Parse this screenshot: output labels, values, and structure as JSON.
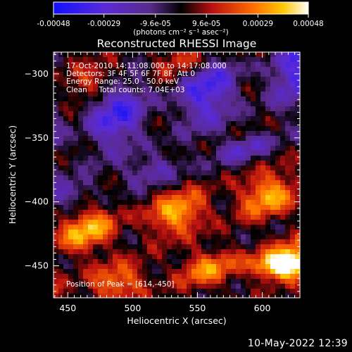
{
  "chart_data": {
    "type": "heatmap",
    "title": "Reconstructed RHESSI Image",
    "xlabel": "Heliocentric X (arcsec)",
    "ylabel": "Heliocentric Y (arcsec)",
    "xlim": [
      439,
      629
    ],
    "ylim": [
      -475,
      -283
    ],
    "x_ticks": [
      450,
      500,
      550,
      600
    ],
    "y_ticks": [
      -300,
      -350,
      -400,
      -450
    ],
    "colorbar": {
      "range": [
        -0.00048,
        0.00048
      ],
      "tick_values": [
        -0.00048,
        -0.00029,
        -9.6e-05,
        9.6e-05,
        0.00029,
        0.00048
      ],
      "tick_labels": [
        "-0.00048",
        "-0.00029",
        "-9.6e-05",
        "9.6e-05",
        "0.00029",
        "0.00048"
      ],
      "unit_label": "(photons cm⁻² s⁻¹ asec⁻²)"
    },
    "annotations": [
      "17-Oct-2010 14:11:08.000 to 14:17:08.000",
      "Detectors: 3F 4F 5F 6F 7F 8F, Att 0",
      "Energy Range: 25.0 - 50.0 keV",
      "Clean     Total counts: 7.04E+03"
    ],
    "peak_label": "Position of Peak = [614,-450]",
    "peak_position": [
      614,
      -450
    ],
    "bands": [
      {
        "kind": "negative",
        "center_y_at_x439": -345,
        "slope": 0.26,
        "width": 28,
        "strength": 0.7
      },
      {
        "kind": "positive",
        "center_y_at_x439": -312,
        "slope": 0.24,
        "width": 12,
        "strength": 0.45
      },
      {
        "kind": "positive",
        "center_y_at_x439": -428,
        "slope": 0.2,
        "width": 16,
        "strength": 0.75
      },
      {
        "kind": "positive",
        "center_y_at_x439": -470,
        "slope": 0.15,
        "width": 14,
        "strength": 0.6
      },
      {
        "kind": "negative",
        "center_y_at_x439": -395,
        "slope": 0.25,
        "width": 10,
        "strength": 0.45
      }
    ],
    "peak_strength": 1.0
  },
  "footer": {
    "date": "10-May-2022 12:39"
  }
}
